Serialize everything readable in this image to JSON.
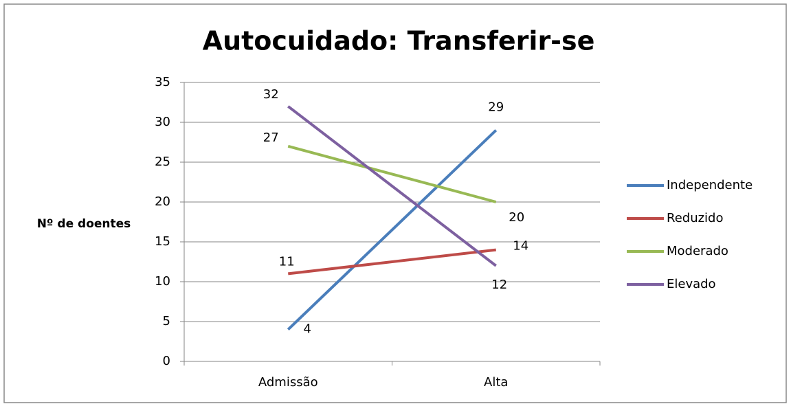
{
  "chart_data": {
    "type": "line",
    "title": "Autocuidado: Transferir-se",
    "y_label": "Nº de doentes",
    "categories": [
      "Admissão",
      "Alta"
    ],
    "series": [
      {
        "name": "Independente",
        "color": "#4a7ebb",
        "values": [
          4,
          29
        ]
      },
      {
        "name": "Reduzido",
        "color": "#be4b48",
        "values": [
          11,
          14
        ]
      },
      {
        "name": "Moderado",
        "color": "#98b954",
        "values": [
          27,
          20
        ]
      },
      {
        "name": "Elevado",
        "color": "#7d60a0",
        "values": [
          32,
          12
        ]
      }
    ],
    "ylim": [
      0,
      35
    ],
    "yticks": [
      0,
      5,
      10,
      15,
      20,
      25,
      30,
      35
    ],
    "grid": true,
    "legend": "right"
  }
}
